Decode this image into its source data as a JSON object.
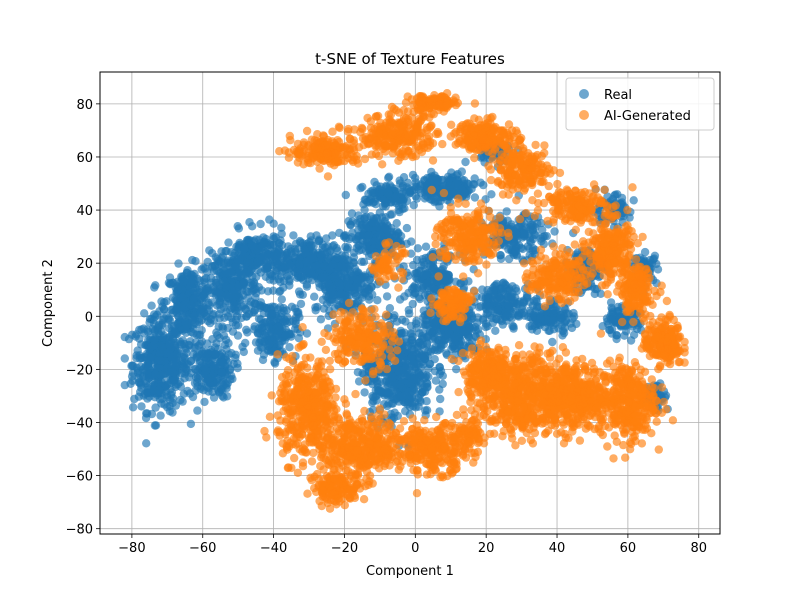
{
  "chart_data": {
    "type": "scatter",
    "title": "t-SNE of Texture Features",
    "xlabel": "Component 1",
    "ylabel": "Component 2",
    "xlim": [
      -89,
      86
    ],
    "ylim": [
      -82,
      92
    ],
    "xticks": [
      -80,
      -60,
      -40,
      -20,
      0,
      20,
      40,
      60,
      80
    ],
    "yticks": [
      -80,
      -60,
      -40,
      -20,
      0,
      20,
      40,
      60,
      80
    ],
    "grid": true,
    "legend_position": "top-right",
    "series": [
      {
        "name": "Real",
        "color": "#1f77b4",
        "clusters": [
          {
            "cx": -72,
            "cy": -18,
            "rx": 7,
            "ry": 16,
            "n": 420
          },
          {
            "cx": -64,
            "cy": 5,
            "rx": 6,
            "ry": 12,
            "n": 260
          },
          {
            "cx": -58,
            "cy": -20,
            "rx": 6,
            "ry": 10,
            "n": 200
          },
          {
            "cx": -52,
            "cy": 10,
            "rx": 7,
            "ry": 12,
            "n": 240
          },
          {
            "cx": -45,
            "cy": 22,
            "rx": 8,
            "ry": 9,
            "n": 220
          },
          {
            "cx": -40,
            "cy": -5,
            "rx": 6,
            "ry": 10,
            "n": 180
          },
          {
            "cx": -30,
            "cy": 20,
            "rx": 9,
            "ry": 9,
            "n": 260
          },
          {
            "cx": -20,
            "cy": 12,
            "rx": 8,
            "ry": 10,
            "n": 240
          },
          {
            "cx": -12,
            "cy": 30,
            "rx": 7,
            "ry": 8,
            "n": 200
          },
          {
            "cx": -5,
            "cy": -20,
            "rx": 9,
            "ry": 17,
            "n": 480
          },
          {
            "cx": 10,
            "cy": -5,
            "rx": 8,
            "ry": 10,
            "n": 300
          },
          {
            "cx": 5,
            "cy": 15,
            "rx": 7,
            "ry": 8,
            "n": 160
          },
          {
            "cx": 8,
            "cy": 48,
            "rx": 9,
            "ry": 5,
            "n": 200
          },
          {
            "cx": -8,
            "cy": 45,
            "rx": 6,
            "ry": 5,
            "n": 120
          },
          {
            "cx": 28,
            "cy": 30,
            "rx": 8,
            "ry": 7,
            "n": 180
          },
          {
            "cx": 25,
            "cy": 5,
            "rx": 7,
            "ry": 7,
            "n": 160
          },
          {
            "cx": 38,
            "cy": 0,
            "rx": 6,
            "ry": 6,
            "n": 120
          },
          {
            "cx": 48,
            "cy": 18,
            "rx": 5,
            "ry": 8,
            "n": 120
          },
          {
            "cx": 55,
            "cy": 40,
            "rx": 5,
            "ry": 5,
            "n": 80
          },
          {
            "cx": 58,
            "cy": -2,
            "rx": 5,
            "ry": 5,
            "n": 80
          },
          {
            "cx": 65,
            "cy": 18,
            "rx": 3,
            "ry": 5,
            "n": 60
          },
          {
            "cx": 22,
            "cy": 62,
            "rx": 6,
            "ry": 4,
            "n": 60
          },
          {
            "cx": 68,
            "cy": -30,
            "rx": 3,
            "ry": 5,
            "n": 50
          }
        ]
      },
      {
        "name": "AI-Generated",
        "color": "#ff7f0e",
        "clusters": [
          {
            "cx": -25,
            "cy": 62,
            "rx": 9,
            "ry": 5,
            "n": 180
          },
          {
            "cx": -5,
            "cy": 68,
            "rx": 10,
            "ry": 7,
            "n": 240
          },
          {
            "cx": 5,
            "cy": 80,
            "rx": 6,
            "ry": 3,
            "n": 120
          },
          {
            "cx": 20,
            "cy": 68,
            "rx": 8,
            "ry": 5,
            "n": 180
          },
          {
            "cx": 30,
            "cy": 55,
            "rx": 8,
            "ry": 7,
            "n": 180
          },
          {
            "cx": 45,
            "cy": 42,
            "rx": 8,
            "ry": 6,
            "n": 160
          },
          {
            "cx": 15,
            "cy": 30,
            "rx": 8,
            "ry": 10,
            "n": 220
          },
          {
            "cx": -8,
            "cy": 20,
            "rx": 4,
            "ry": 6,
            "n": 60
          },
          {
            "cx": 55,
            "cy": 25,
            "rx": 6,
            "ry": 10,
            "n": 220
          },
          {
            "cx": 62,
            "cy": 10,
            "rx": 5,
            "ry": 8,
            "n": 160
          },
          {
            "cx": 40,
            "cy": 15,
            "rx": 7,
            "ry": 8,
            "n": 180
          },
          {
            "cx": 30,
            "cy": -30,
            "rx": 11,
            "ry": 14,
            "n": 500
          },
          {
            "cx": 45,
            "cy": -30,
            "rx": 9,
            "ry": 12,
            "n": 380
          },
          {
            "cx": 60,
            "cy": -32,
            "rx": 7,
            "ry": 13,
            "n": 320
          },
          {
            "cx": 70,
            "cy": -10,
            "rx": 5,
            "ry": 8,
            "n": 180
          },
          {
            "cx": 20,
            "cy": -20,
            "rx": 6,
            "ry": 8,
            "n": 180
          },
          {
            "cx": -30,
            "cy": -35,
            "rx": 8,
            "ry": 17,
            "n": 420
          },
          {
            "cx": -15,
            "cy": -50,
            "rx": 11,
            "ry": 10,
            "n": 360
          },
          {
            "cx": 5,
            "cy": -50,
            "rx": 9,
            "ry": 8,
            "n": 260
          },
          {
            "cx": -22,
            "cy": -65,
            "rx": 6,
            "ry": 5,
            "n": 120
          },
          {
            "cx": -15,
            "cy": -8,
            "rx": 8,
            "ry": 10,
            "n": 200
          },
          {
            "cx": 10,
            "cy": 5,
            "rx": 5,
            "ry": 6,
            "n": 100
          },
          {
            "cx": 15,
            "cy": -45,
            "rx": 4,
            "ry": 5,
            "n": 60
          }
        ]
      }
    ]
  }
}
